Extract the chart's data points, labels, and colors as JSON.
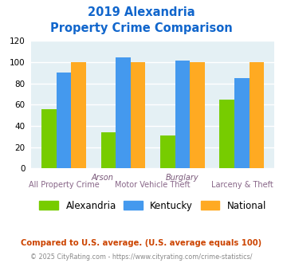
{
  "title_line1": "2019 Alexandria",
  "title_line2": "Property Crime Comparison",
  "alexandria": [
    56,
    34,
    31,
    65
  ],
  "kentucky": [
    90,
    104,
    101,
    85
  ],
  "national": [
    100,
    100,
    100,
    100
  ],
  "bar_color_alexandria": "#77cc00",
  "bar_color_kentucky": "#4499ee",
  "bar_color_national": "#ffaa22",
  "background_color": "#e4f0f4",
  "ylim": [
    0,
    120
  ],
  "yticks": [
    0,
    20,
    40,
    60,
    80,
    100,
    120
  ],
  "grid_color": "#ffffff",
  "legend_labels": [
    "Alexandria",
    "Kentucky",
    "National"
  ],
  "footnote1": "Compared to U.S. average. (U.S. average equals 100)",
  "footnote2": "© 2025 CityRating.com - https://www.cityrating.com/crime-statistics/",
  "title_color": "#1166cc",
  "footnote1_color": "#cc4400",
  "footnote2_color": "#888888",
  "xlabel_top_color": "#775577",
  "xlabel_bot_color": "#886688"
}
